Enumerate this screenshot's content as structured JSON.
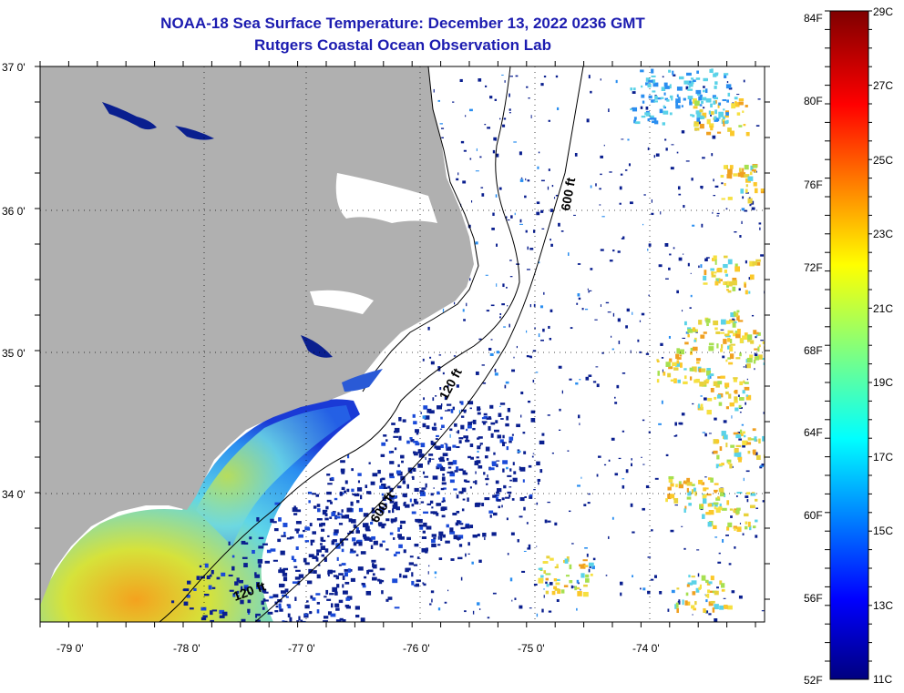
{
  "title": {
    "line1": "NOAA-18 Sea Surface Temperature:  December 13, 2022 0236 GMT",
    "line2": "Rutgers Coastal Ocean Observation Lab"
  },
  "axes": {
    "lat_labels": [
      "37 0'",
      "36 0'",
      "35 0'",
      "34 0'"
    ],
    "lon_labels": [
      "-79 0'",
      "-78 0'",
      "-77 0'",
      "-76 0'",
      "-75 0'",
      "-74 0'"
    ]
  },
  "isobaths": {
    "label_600_north": "600 ft",
    "label_120_mid": "120 ft",
    "label_600_south": "600 ft",
    "label_120_south": "120 ft"
  },
  "colorbar": {
    "f_labels": [
      "84F",
      "80F",
      "76F",
      "72F",
      "68F",
      "64F",
      "60F",
      "56F",
      "52F"
    ],
    "c_labels": [
      "29C",
      "27C",
      "25C",
      "23C",
      "21C",
      "19C",
      "17C",
      "15C",
      "13C",
      "11C"
    ]
  },
  "colors": {
    "land": "#b0b0b0",
    "cloud": "#ffffff",
    "title": "#1c1cb0"
  }
}
